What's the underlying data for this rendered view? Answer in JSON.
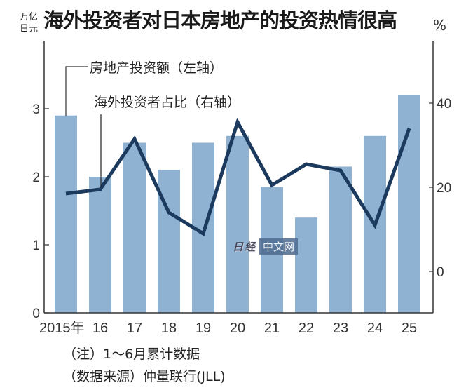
{
  "title": "海外投资者对日本房地产的投资热情很高",
  "unit_left": "万亿日元",
  "unit_right": "%",
  "legend": {
    "bars_label": "房地产投资额（左轴）",
    "line_label": "海外投资者占比（右轴）"
  },
  "notes": {
    "note": "（注）1～6月累计数据",
    "source": "（数据来源）仲量联行(JLL)"
  },
  "watermark": {
    "logo": "日经",
    "box": "中文网"
  },
  "colors": {
    "bar": "#8fb2d3",
    "line": "#1b3a5e",
    "axis": "#333333"
  },
  "chart_data": {
    "type": "bar+line",
    "title": "海外投资者对日本房地产的投资热情很高",
    "categories": [
      "2015年",
      "16",
      "17",
      "18",
      "19",
      "20",
      "21",
      "22",
      "23",
      "24",
      "25"
    ],
    "series": [
      {
        "name": "房地产投资额（左轴）",
        "type": "bar",
        "axis": "left",
        "unit": "万亿日元",
        "values": [
          2.9,
          2.0,
          2.5,
          2.1,
          2.5,
          2.6,
          1.85,
          1.4,
          2.15,
          2.6,
          3.2
        ]
      },
      {
        "name": "海外投资者占比（右轴）",
        "type": "line",
        "axis": "right",
        "unit": "%",
        "values": [
          18.5,
          19.5,
          31.5,
          14,
          9,
          35.5,
          20.5,
          25.5,
          24,
          11,
          34
        ]
      }
    ],
    "left_axis": {
      "label": "万亿日元",
      "ticks": [
        0,
        1,
        2,
        3
      ],
      "range": [
        0,
        4.0
      ]
    },
    "right_axis": {
      "label": "%",
      "ticks": [
        0,
        20,
        40
      ],
      "range": [
        -10,
        55
      ]
    },
    "grid": false,
    "legend_position": "inline-top-left",
    "annotations": [
      "（注）1～6月累计数据",
      "（数据来源）仲量联行(JLL)"
    ]
  }
}
